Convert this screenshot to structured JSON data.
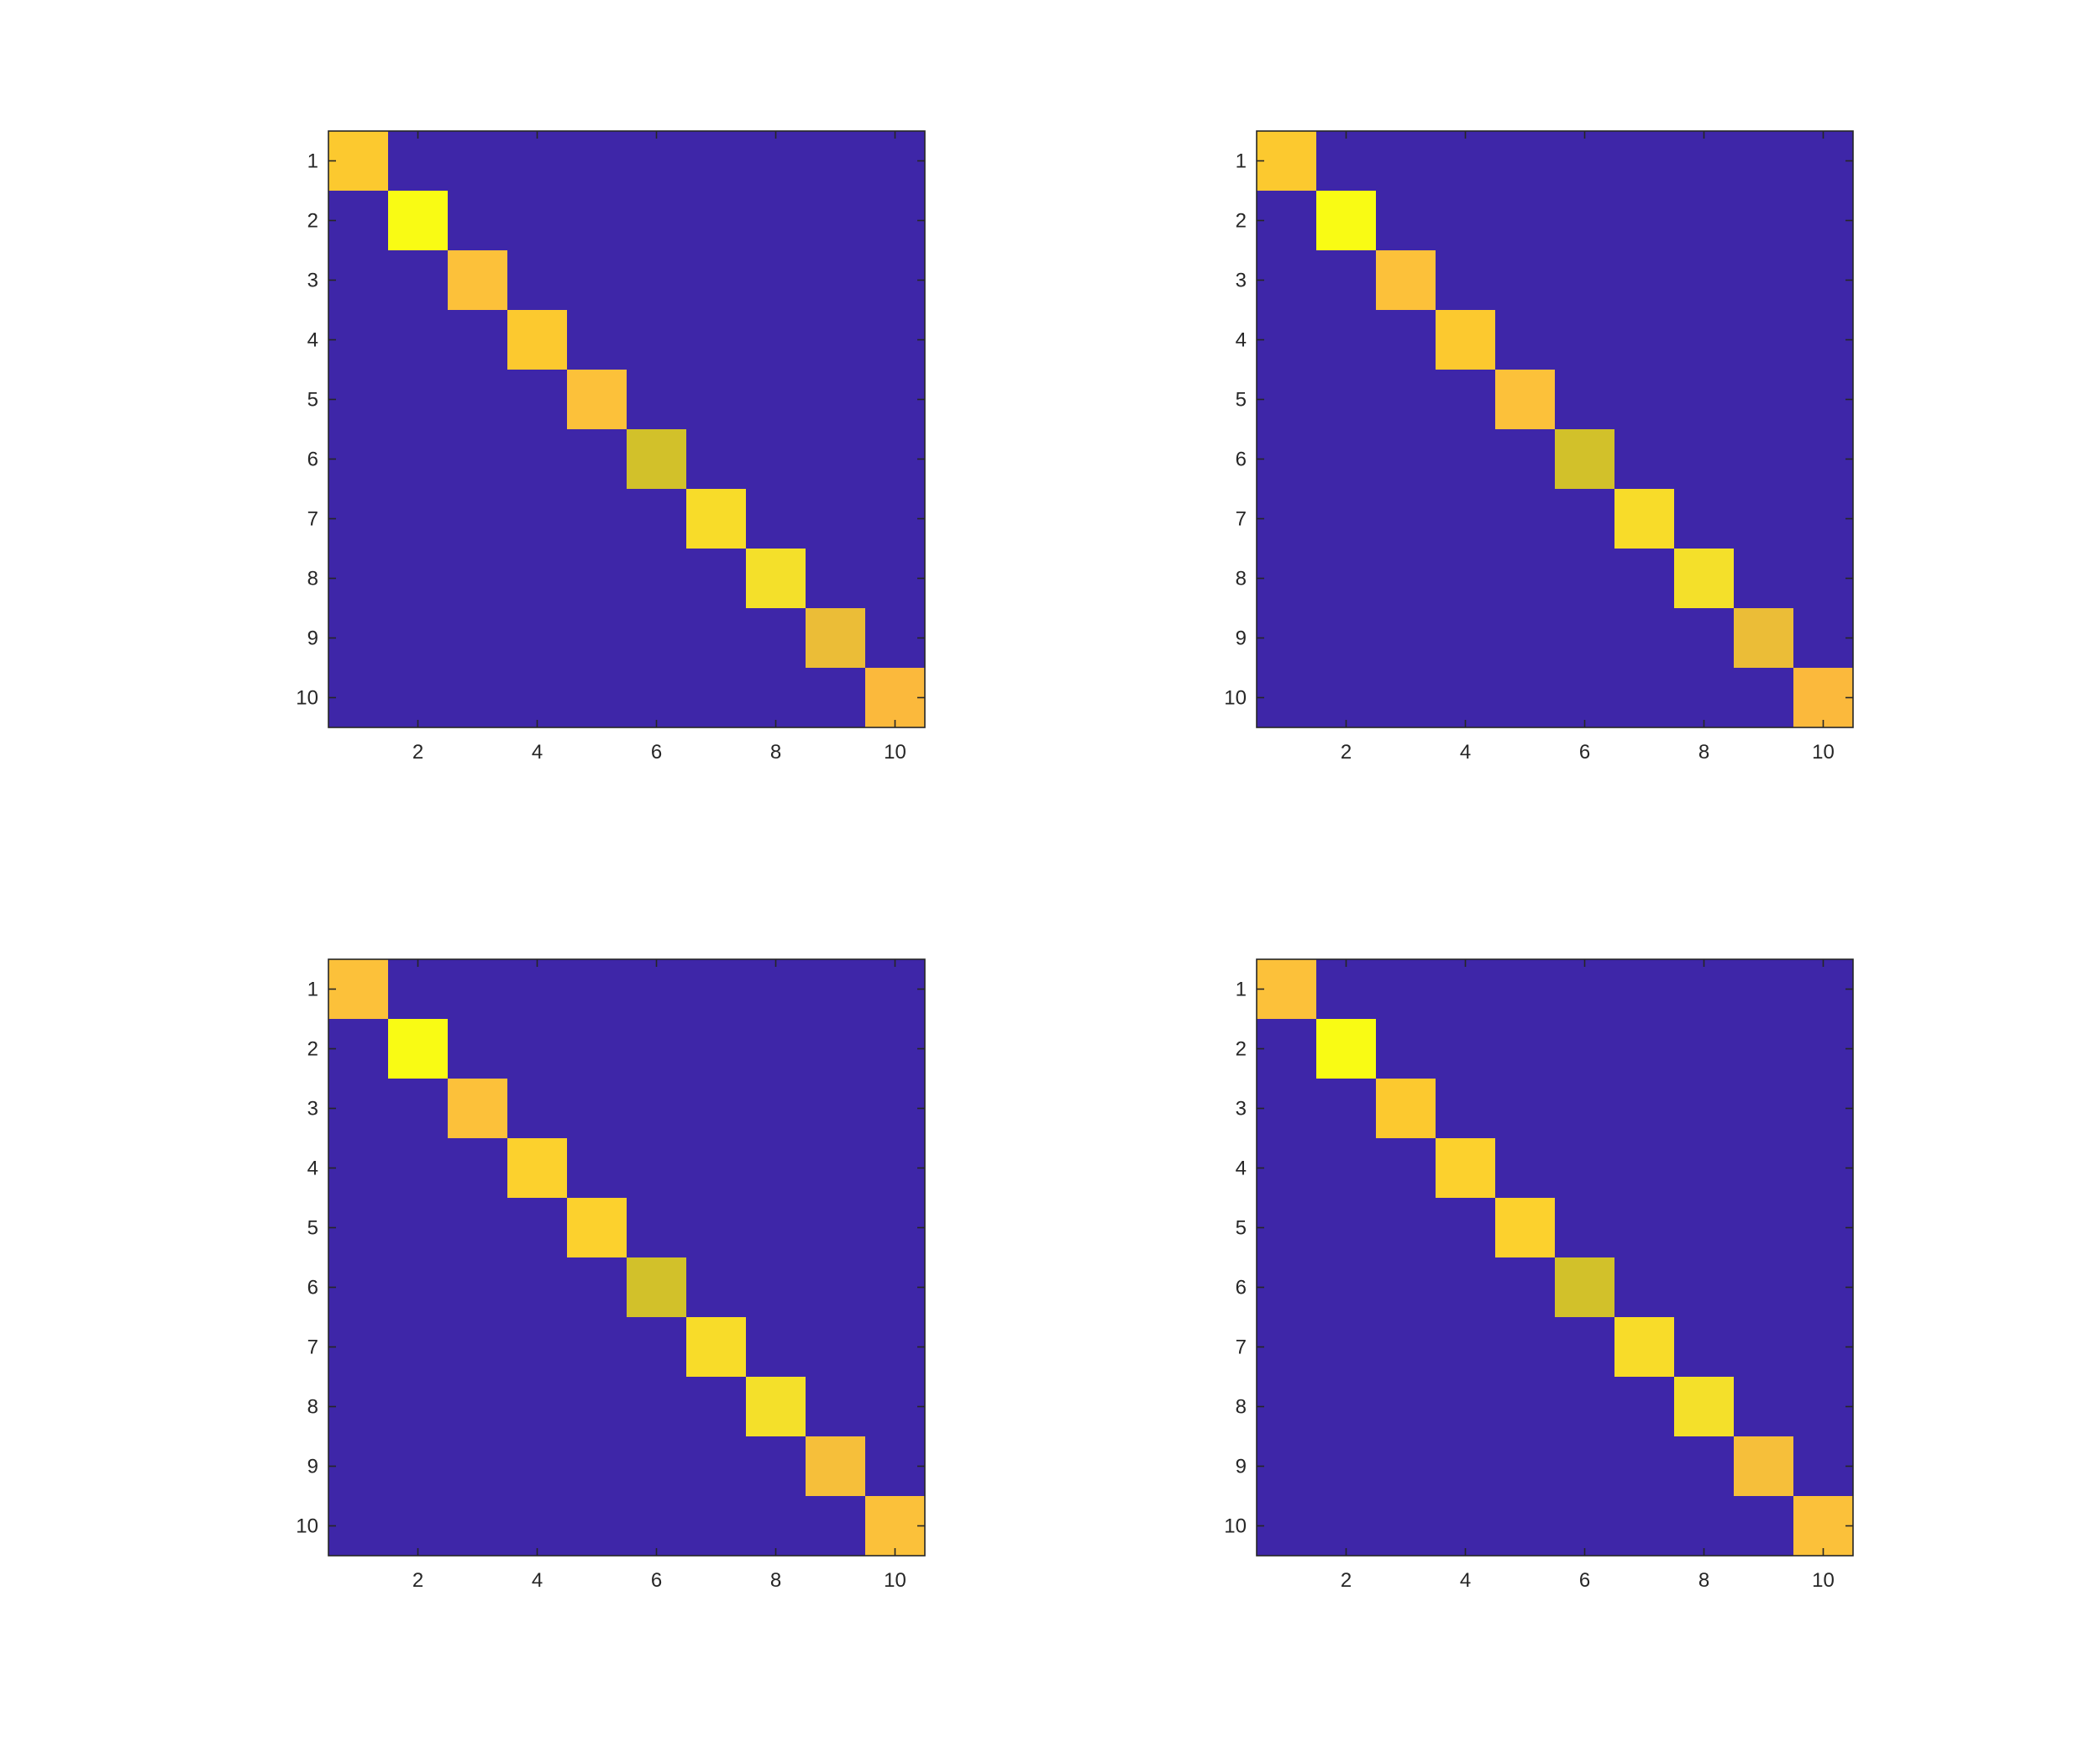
{
  "chart_data": [
    {
      "type": "heatmap",
      "title": "",
      "xlabel": "",
      "ylabel": "",
      "rows": [
        1,
        2,
        3,
        4,
        5,
        6,
        7,
        8,
        9,
        10
      ],
      "cols": [
        1,
        2,
        3,
        4,
        5,
        6,
        7,
        8,
        9,
        10
      ],
      "x_ticks": [
        2,
        4,
        6,
        8,
        10
      ],
      "y_ticks": [
        1,
        2,
        3,
        4,
        5,
        6,
        7,
        8,
        9,
        10
      ],
      "xlim": [
        0.5,
        10.5
      ],
      "ylim": [
        0.5,
        10.5
      ],
      "off_diagonal_color": "#3e26a8",
      "diagonal_colors": [
        "#fcc92f",
        "#f9fb14",
        "#fcc13a",
        "#fcc92f",
        "#fcc13a",
        "#d2c12a",
        "#f8dc29",
        "#f4e02a",
        "#ebbd37",
        "#fbb93c"
      ]
    },
    {
      "type": "heatmap",
      "title": "",
      "xlabel": "",
      "ylabel": "",
      "rows": [
        1,
        2,
        3,
        4,
        5,
        6,
        7,
        8,
        9,
        10
      ],
      "cols": [
        1,
        2,
        3,
        4,
        5,
        6,
        7,
        8,
        9,
        10
      ],
      "x_ticks": [
        2,
        4,
        6,
        8,
        10
      ],
      "y_ticks": [
        1,
        2,
        3,
        4,
        5,
        6,
        7,
        8,
        9,
        10
      ],
      "xlim": [
        0.5,
        10.5
      ],
      "ylim": [
        0.5,
        10.5
      ],
      "off_diagonal_color": "#3e26a8",
      "diagonal_colors": [
        "#fcc92f",
        "#f9fb14",
        "#fcc13a",
        "#fcc92f",
        "#fcc13a",
        "#d2c12a",
        "#f8dc29",
        "#f4e02a",
        "#ebbd37",
        "#fbb93c"
      ]
    },
    {
      "type": "heatmap",
      "title": "",
      "xlabel": "",
      "ylabel": "",
      "rows": [
        1,
        2,
        3,
        4,
        5,
        6,
        7,
        8,
        9,
        10
      ],
      "cols": [
        1,
        2,
        3,
        4,
        5,
        6,
        7,
        8,
        9,
        10
      ],
      "x_ticks": [
        2,
        4,
        6,
        8,
        10
      ],
      "y_ticks": [
        1,
        2,
        3,
        4,
        5,
        6,
        7,
        8,
        9,
        10
      ],
      "xlim": [
        0.5,
        10.5
      ],
      "ylim": [
        0.5,
        10.5
      ],
      "off_diagonal_color": "#3e26a8",
      "diagonal_colors": [
        "#fcc13a",
        "#f9fb14",
        "#fcc13a",
        "#fcd12d",
        "#fcd12d",
        "#d2c12a",
        "#f8dc29",
        "#f4e02a",
        "#f6bf3a",
        "#fbc13a"
      ]
    },
    {
      "type": "heatmap",
      "title": "",
      "xlabel": "",
      "ylabel": "",
      "rows": [
        1,
        2,
        3,
        4,
        5,
        6,
        7,
        8,
        9,
        10
      ],
      "cols": [
        1,
        2,
        3,
        4,
        5,
        6,
        7,
        8,
        9,
        10
      ],
      "x_ticks": [
        2,
        4,
        6,
        8,
        10
      ],
      "y_ticks": [
        1,
        2,
        3,
        4,
        5,
        6,
        7,
        8,
        9,
        10
      ],
      "xlim": [
        0.5,
        10.5
      ],
      "ylim": [
        0.5,
        10.5
      ],
      "off_diagonal_color": "#3e26a8",
      "diagonal_colors": [
        "#fcc13a",
        "#f9fb14",
        "#fcc92f",
        "#fcd12d",
        "#fcd12d",
        "#d2c12a",
        "#f8dc29",
        "#f4e02a",
        "#f6bf3a",
        "#fbc13a"
      ]
    }
  ]
}
